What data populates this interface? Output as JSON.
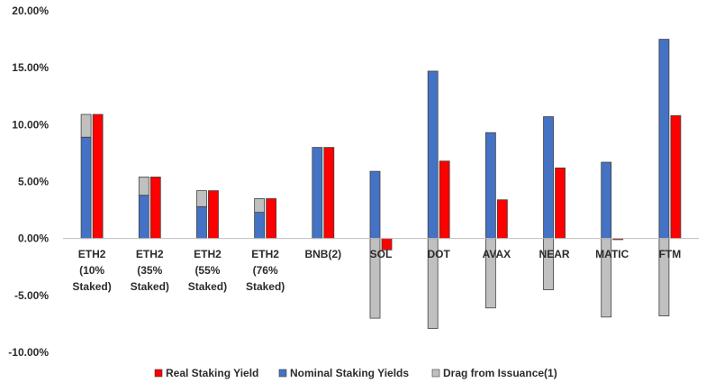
{
  "chart_data": {
    "type": "bar",
    "categories": [
      [
        "ETH2",
        "(10%",
        "Staked)"
      ],
      [
        "ETH2",
        "(35%",
        "Staked)"
      ],
      [
        "ETH2",
        "(55%",
        "Staked)"
      ],
      [
        "ETH2",
        "(76%",
        "Staked)"
      ],
      [
        "BNB(2)"
      ],
      [
        "SOL"
      ],
      [
        "DOT"
      ],
      [
        "AVAX"
      ],
      [
        "NEAR"
      ],
      [
        "MATIC"
      ],
      [
        "FTM"
      ]
    ],
    "series": [
      {
        "name": "Real Staking Yield",
        "color": "#ff0000",
        "values": [
          10.9,
          5.4,
          4.2,
          3.5,
          8.0,
          -1.0,
          6.8,
          3.4,
          6.2,
          -0.1,
          10.8
        ]
      },
      {
        "name": "Nominal Staking Yields",
        "color": "#4472c4",
        "values": [
          8.9,
          3.8,
          2.8,
          2.3,
          8.0,
          5.9,
          14.7,
          9.3,
          10.7,
          6.7,
          17.5
        ]
      },
      {
        "name": "Drag from Issuance(1)",
        "color": "#c0c0c0",
        "values": [
          2.0,
          1.6,
          1.4,
          1.2,
          0.0,
          -7.0,
          -7.9,
          -6.1,
          -4.5,
          -6.9,
          -6.8
        ]
      }
    ],
    "yticks": [
      "20.00%",
      "15.00%",
      "10.00%",
      "5.00%",
      "0.00%",
      "-5.00%",
      "-10.00%"
    ],
    "ylim": [
      -10,
      20
    ],
    "ytick_step": 5,
    "grid": false,
    "legend_position": "bottom"
  }
}
